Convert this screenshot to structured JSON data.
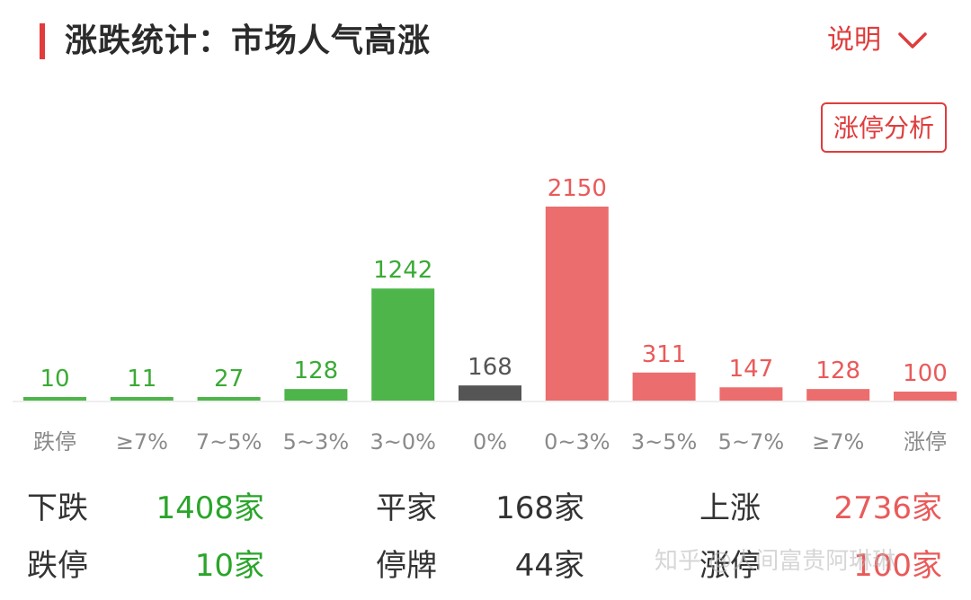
{
  "header": {
    "title": "涨跌统计：市场人气高涨",
    "explain_label": "说明",
    "analysis_button": "涨停分析",
    "accent_color": "#e03c3c"
  },
  "chart_data": {
    "type": "bar",
    "categories": [
      "跌停",
      "≥7%",
      "7~5%",
      "5~3%",
      "3~0%",
      "0%",
      "0~3%",
      "3~5%",
      "5~7%",
      "≥7%",
      "涨停"
    ],
    "values": [
      10,
      11,
      27,
      128,
      1242,
      168,
      2150,
      311,
      147,
      128,
      100
    ],
    "value_labels": [
      "10",
      "11",
      "27",
      "128",
      "1242",
      "168",
      "2150",
      "311",
      "147",
      "128",
      "100"
    ],
    "bar_colors": [
      "#4db54a",
      "#4db54a",
      "#4db54a",
      "#4db54a",
      "#4db54a",
      "#555555",
      "#ec6d6d",
      "#ec6d6d",
      "#ec6d6d",
      "#ec6d6d",
      "#ec6d6d"
    ],
    "label_colors": [
      "#3aaa35",
      "#3aaa35",
      "#3aaa35",
      "#3aaa35",
      "#3aaa35",
      "#555555",
      "#ea5a5a",
      "#ea5a5a",
      "#ea5a5a",
      "#ea5a5a",
      "#ea5a5a"
    ],
    "title": "",
    "xlabel": "",
    "ylabel": "",
    "ylim": [
      0,
      2150
    ],
    "grid": false,
    "legend": "none"
  },
  "stats": [
    {
      "label": "下跌",
      "value": "1408家",
      "color": "#2aa52a"
    },
    {
      "label": "平家",
      "value": "168家",
      "color": "#333333"
    },
    {
      "label": "上涨",
      "value": "2736家",
      "color": "#ea5a5a"
    },
    {
      "label": "跌停",
      "value": "10家",
      "color": "#2aa52a"
    },
    {
      "label": "停牌",
      "value": "44家",
      "color": "#333333"
    },
    {
      "label": "涨停",
      "value": "100家",
      "color": "#ea5a5a"
    }
  ],
  "watermark": "知乎 @人间富贵阿琳琳"
}
